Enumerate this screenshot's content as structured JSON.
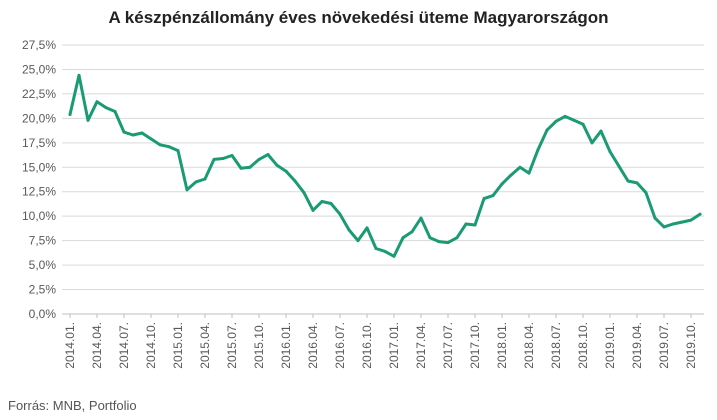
{
  "header": {
    "title": "A készpénzállomány éves növekedési üteme Magyarországon"
  },
  "footer": {
    "source": "Forrás: MNB, Portfolio"
  },
  "colors": {
    "line": "#1a9b73",
    "grid": "#d9d9d9",
    "axis": "#bfbfbf",
    "text": "#595959"
  },
  "chart_data": {
    "type": "line",
    "title": "A készpénzállomány éves növekedési üteme Magyarországon",
    "xlabel": "",
    "ylabel": "",
    "ylim": [
      0,
      27.5
    ],
    "y_ticks": [
      0,
      2.5,
      5,
      7.5,
      10,
      12.5,
      15,
      17.5,
      20,
      22.5,
      25,
      27.5
    ],
    "y_tick_labels": [
      "0,0%",
      "2,5%",
      "5,0%",
      "7,5%",
      "10,0%",
      "12,5%",
      "15,0%",
      "17,5%",
      "20,0%",
      "22,5%",
      "25,0%",
      "27,5%"
    ],
    "x_tick_labels": [
      "2014.01.",
      "2014.04.",
      "2014.07.",
      "2014.10.",
      "2015.01.",
      "2015.04.",
      "2015.07.",
      "2015.10.",
      "2016.01.",
      "2016.04.",
      "2016.07.",
      "2016.10.",
      "2017.01.",
      "2017.04.",
      "2017.07.",
      "2017.10.",
      "2018.01.",
      "2018.04.",
      "2018.07.",
      "2018.10.",
      "2019.01.",
      "2019.04.",
      "2019.07.",
      "2019.10."
    ],
    "grid": true,
    "legend": "none",
    "series": [
      {
        "x": [
          "2014.01.",
          "2014.02.",
          "2014.03.",
          "2014.04.",
          "2014.05.",
          "2014.06.",
          "2014.07.",
          "2014.08.",
          "2014.09.",
          "2014.10.",
          "2014.11.",
          "2014.12.",
          "2015.01.",
          "2015.02.",
          "2015.03.",
          "2015.04.",
          "2015.05.",
          "2015.06.",
          "2015.07.",
          "2015.08.",
          "2015.09.",
          "2015.10.",
          "2015.11.",
          "2015.12.",
          "2016.01.",
          "2016.02.",
          "2016.03.",
          "2016.04.",
          "2016.05.",
          "2016.06.",
          "2016.07.",
          "2016.08.",
          "2016.09.",
          "2016.10.",
          "2016.11.",
          "2016.12.",
          "2017.01.",
          "2017.02.",
          "2017.03.",
          "2017.04.",
          "2017.05.",
          "2017.06.",
          "2017.07.",
          "2017.08.",
          "2017.09.",
          "2017.10.",
          "2017.11.",
          "2017.12.",
          "2018.01.",
          "2018.02.",
          "2018.03.",
          "2018.04.",
          "2018.05.",
          "2018.06.",
          "2018.07.",
          "2018.08.",
          "2018.09.",
          "2018.10.",
          "2018.11.",
          "2018.12.",
          "2019.01.",
          "2019.02.",
          "2019.03.",
          "2019.04.",
          "2019.05.",
          "2019.06.",
          "2019.07.",
          "2019.08.",
          "2019.09.",
          "2019.10.",
          "2019.11."
        ],
        "values": [
          20.4,
          24.4,
          19.8,
          21.7,
          21.1,
          20.7,
          18.6,
          18.3,
          18.5,
          17.9,
          17.3,
          17.1,
          16.7,
          12.7,
          13.5,
          13.8,
          15.8,
          15.9,
          16.2,
          14.9,
          15.0,
          15.8,
          16.3,
          15.2,
          14.6,
          13.6,
          12.4,
          10.6,
          11.5,
          11.3,
          10.2,
          8.6,
          7.5,
          8.8,
          6.7,
          6.4,
          5.9,
          7.8,
          8.4,
          9.8,
          7.8,
          7.4,
          7.3,
          7.8,
          9.2,
          9.1,
          11.8,
          12.1,
          13.3,
          14.2,
          15.0,
          14.4,
          16.8,
          18.8,
          19.7,
          20.2,
          19.8,
          19.4,
          17.5,
          18.7,
          16.6,
          15.1,
          13.6,
          13.4,
          12.4,
          9.8,
          8.9,
          9.2,
          9.4,
          9.6,
          10.2
        ]
      }
    ]
  }
}
